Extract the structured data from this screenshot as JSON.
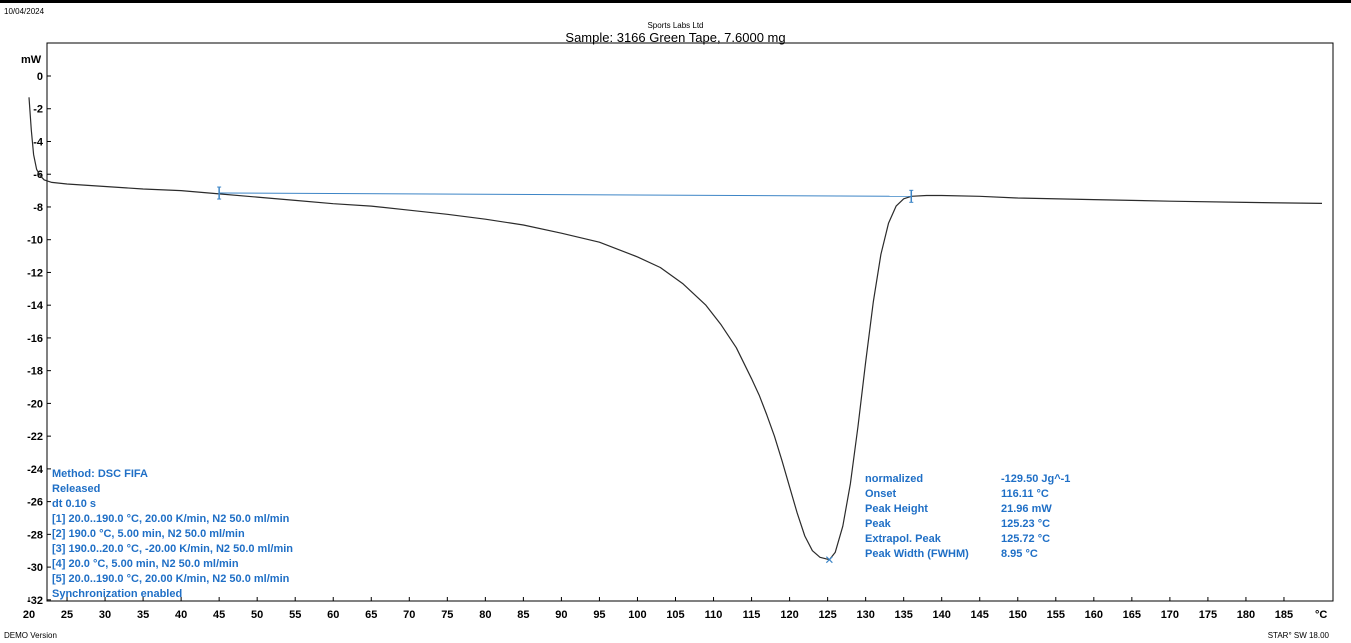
{
  "header": {
    "date": "10/04/2024",
    "company": "Sports Labs Ltd",
    "sample_title": "Sample: 3166 Green Tape, 7.6000 mg"
  },
  "footer": {
    "left": "DEMO Version",
    "right": "STAR° SW 18.00"
  },
  "colors": {
    "curve": "#2b2b2b",
    "baseline": "#3d85c6",
    "annotation": "#1f6fc6",
    "frame": "#000000"
  },
  "chart_data": {
    "type": "line",
    "title": "Sample: 3166 Green Tape, 7.6000 mg",
    "ylabel": "mW",
    "xlabel": "°C",
    "xlim": [
      20,
      190
    ],
    "ylim": [
      -32,
      1.5
    ],
    "x_ticks": [
      20,
      25,
      30,
      35,
      40,
      45,
      50,
      55,
      60,
      65,
      70,
      75,
      80,
      85,
      90,
      95,
      100,
      105,
      110,
      115,
      120,
      125,
      130,
      135,
      140,
      145,
      150,
      155,
      160,
      165,
      170,
      175,
      180,
      185
    ],
    "y_ticks": [
      0,
      -2,
      -4,
      -6,
      -8,
      -10,
      -12,
      -14,
      -16,
      -18,
      -20,
      -22,
      -24,
      -26,
      -28,
      -30,
      -32
    ],
    "grid": false,
    "series": [
      {
        "name": "",
        "x": [
          20,
          20.3,
          20.6,
          21,
          21.5,
          22,
          23,
          25,
          30,
          35,
          40,
          45,
          50,
          55,
          60,
          65,
          70,
          75,
          80,
          85,
          90,
          95,
          100,
          103,
          106,
          109,
          111,
          113,
          115,
          116,
          117,
          118,
          119,
          120,
          121,
          122,
          123,
          124,
          125.23,
          126,
          127,
          128,
          129,
          130,
          131,
          132,
          133,
          134,
          135,
          136,
          138,
          140,
          145,
          150,
          160,
          170,
          180,
          190
        ],
        "y": [
          -1.3,
          -3.3,
          -4.8,
          -5.7,
          -6.1,
          -6.35,
          -6.5,
          -6.6,
          -6.75,
          -6.9,
          -7.0,
          -7.2,
          -7.4,
          -7.6,
          -7.8,
          -7.95,
          -8.2,
          -8.45,
          -8.75,
          -9.1,
          -9.6,
          -10.15,
          -11.05,
          -11.7,
          -12.7,
          -14.0,
          -15.2,
          -16.6,
          -18.5,
          -19.5,
          -20.7,
          -22.0,
          -23.5,
          -25.1,
          -26.7,
          -28.1,
          -29.0,
          -29.4,
          -29.55,
          -29.1,
          -27.5,
          -24.9,
          -21.4,
          -17.5,
          -13.8,
          -10.9,
          -9.0,
          -7.95,
          -7.5,
          -7.35,
          -7.3,
          -7.3,
          -7.35,
          -7.45,
          -7.55,
          -7.65,
          -7.72,
          -7.78
        ],
        "color": "#2b2b2b"
      },
      {
        "name": "",
        "x": [
          45,
          136
        ],
        "y": [
          -7.15,
          -7.35
        ],
        "color": "#3d85c6"
      }
    ],
    "limit_markers": [
      {
        "x": 45,
        "y": -7.15
      },
      {
        "x": 136,
        "y": -7.35
      }
    ],
    "peak_marker": {
      "x": 125.23,
      "y": -29.55
    },
    "method_block": [
      "Method: DSC FIFA",
      "Released",
      "dt 0.10 s",
      "[1] 20.0..190.0 °C, 20.00 K/min, N2 50.0 ml/min",
      "[2] 190.0 °C, 5.00 min, N2 50.0 ml/min",
      "[3] 190.0..20.0 °C, -20.00 K/min, N2 50.0 ml/min",
      "[4] 20.0 °C, 5.00 min, N2 50.0 ml/min",
      "[5] 20.0..190.0 °C, 20.00 K/min, N2 50.0 ml/min",
      "Synchronization enabled"
    ],
    "results": [
      {
        "label": "normalized",
        "value": "-129.50 Jg^-1"
      },
      {
        "label": "Onset",
        "value": "116.11 °C"
      },
      {
        "label": "Peak Height",
        "value": "21.96 mW"
      },
      {
        "label": "Peak",
        "value": "125.23 °C"
      },
      {
        "label": "Extrapol. Peak",
        "value": "125.72 °C"
      },
      {
        "label": "Peak Width (FWHM)",
        "value": "8.95 °C"
      }
    ]
  }
}
